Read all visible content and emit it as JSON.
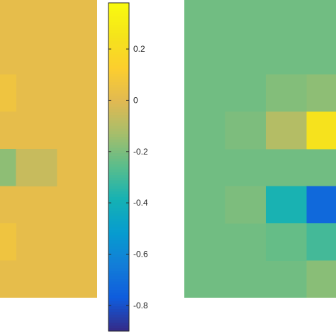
{
  "chart_data": [
    {
      "type": "heatmap",
      "cols": 3,
      "rows": 8,
      "background_value": 0.02,
      "cells": [
        {
          "row": 1,
          "col": 0,
          "value": 0.02
        },
        {
          "row": 2,
          "col": 0,
          "value": 0.06
        },
        {
          "row": 3,
          "col": 0,
          "value": 0.02
        },
        {
          "row": 4,
          "col": 0,
          "value": -0.17
        },
        {
          "row": 4,
          "col": 1,
          "value": -0.06
        },
        {
          "row": 5,
          "col": 0,
          "value": 0.02
        },
        {
          "row": 6,
          "col": 0,
          "value": 0.06
        },
        {
          "row": 7,
          "col": 0,
          "value": 0.02
        }
      ]
    },
    {
      "type": "colorbar",
      "colormap": "parula",
      "range": [
        -0.9,
        0.38
      ],
      "ticks": [
        0.2,
        0,
        -0.2,
        -0.4,
        -0.6,
        -0.8
      ],
      "tick_labels": [
        "0.2",
        "0",
        "-0.2",
        "-0.4",
        "-0.6",
        "-0.8"
      ]
    },
    {
      "type": "heatmap",
      "cols": 4,
      "rows": 8,
      "background_value": -0.22,
      "cells": [
        {
          "row": 2,
          "col": 2,
          "value": -0.19
        },
        {
          "row": 2,
          "col": 3,
          "value": -0.17
        },
        {
          "row": 3,
          "col": 1,
          "value": -0.2
        },
        {
          "row": 3,
          "col": 2,
          "value": -0.1
        },
        {
          "row": 3,
          "col": 3,
          "value": 0.24
        },
        {
          "row": 5,
          "col": 1,
          "value": -0.2
        },
        {
          "row": 5,
          "col": 2,
          "value": -0.38
        },
        {
          "row": 5,
          "col": 3,
          "value": -0.72
        },
        {
          "row": 6,
          "col": 2,
          "value": -0.24
        },
        {
          "row": 6,
          "col": 3,
          "value": -0.3
        },
        {
          "row": 7,
          "col": 3,
          "value": -0.18
        }
      ]
    }
  ]
}
